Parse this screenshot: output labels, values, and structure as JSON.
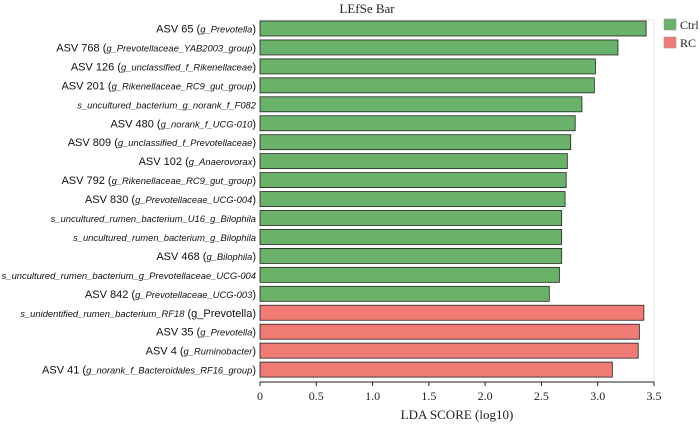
{
  "chart_data": {
    "type": "bar",
    "orientation": "horizontal",
    "title": "LEfSe Bar",
    "xlabel": "LDA SCORE (log10)",
    "ylabel": "",
    "xlim": [
      0,
      3.5
    ],
    "xticks": [
      "0",
      "0.5",
      "1.0",
      "1.5",
      "2.0",
      "2.5",
      "3.0",
      "3.5"
    ],
    "grid": false,
    "legend": {
      "position": "top-right",
      "entries": [
        {
          "name": "Ctrl",
          "color": "#6ab26a"
        },
        {
          "name": "RC",
          "color": "#ef7b74"
        }
      ]
    },
    "bars": [
      {
        "label": {
          "prefix": "ASV 65 (",
          "ital": "g_Prevotella",
          "suffix": ")"
        },
        "value": 3.43,
        "group": "Ctrl"
      },
      {
        "label": {
          "prefix": "ASV 768 (",
          "ital": "g_Prevotellaceae_YAB2003_group",
          "suffix": ")"
        },
        "value": 3.18,
        "group": "Ctrl"
      },
      {
        "label": {
          "prefix": "ASV 126 (",
          "ital": "g_unclassified_f_Rikenellaceae",
          "suffix": ")"
        },
        "value": 2.98,
        "group": "Ctrl"
      },
      {
        "label": {
          "prefix": "ASV 201 (",
          "ital": "g_Rikenellaceae_RC9_gut_group",
          "suffix": ")"
        },
        "value": 2.97,
        "group": "Ctrl"
      },
      {
        "label": {
          "prefix": "",
          "ital": "s_uncultured_bacterium_g_norank_f_F082",
          "suffix": ""
        },
        "value": 2.86,
        "group": "Ctrl"
      },
      {
        "label": {
          "prefix": "ASV 480 (",
          "ital": "g_norank_f_UCG-010",
          "suffix": ")"
        },
        "value": 2.8,
        "group": "Ctrl"
      },
      {
        "label": {
          "prefix": "ASV 809 (",
          "ital": "g_unclassified_f_Prevotellaceae",
          "suffix": ")"
        },
        "value": 2.76,
        "group": "Ctrl"
      },
      {
        "label": {
          "prefix": "ASV 102 (",
          "ital": "g_Anaerovorax",
          "suffix": ")"
        },
        "value": 2.73,
        "group": "Ctrl"
      },
      {
        "label": {
          "prefix": "ASV 792 (",
          "ital": "g_Rikenellaceae_RC9_gut_group",
          "suffix": ")"
        },
        "value": 2.72,
        "group": "Ctrl"
      },
      {
        "label": {
          "prefix": "ASV 830 (",
          "ital": "g_Prevotellaceae_UCG-004",
          "suffix": ")"
        },
        "value": 2.71,
        "group": "Ctrl"
      },
      {
        "label": {
          "prefix": "",
          "ital": "s_uncultured_rumen_bacterium_U16_g_Bilophila",
          "suffix": ""
        },
        "value": 2.68,
        "group": "Ctrl"
      },
      {
        "label": {
          "prefix": "",
          "ital": "s_uncultured_rumen_bacterium_g_Bilophila",
          "suffix": ""
        },
        "value": 2.68,
        "group": "Ctrl"
      },
      {
        "label": {
          "prefix": "ASV 468 (",
          "ital": "g_Bilophila",
          "suffix": ")"
        },
        "value": 2.68,
        "group": "Ctrl"
      },
      {
        "label": {
          "prefix": "",
          "ital": "s_uncultured_rumen_bacterium_g_Prevotellaceae_UCG-004",
          "suffix": ""
        },
        "value": 2.66,
        "group": "Ctrl"
      },
      {
        "label": {
          "prefix": "ASV 842 (",
          "ital": "g_Prevotellaceae_UCG-003",
          "suffix": ")"
        },
        "value": 2.57,
        "group": "Ctrl"
      },
      {
        "label": {
          "prefix": "",
          "ital": "s_unidentified_rumen_bacterium_RF18",
          "suffix": " (g_Prevotella)"
        },
        "value": 3.41,
        "group": "RC"
      },
      {
        "label": {
          "prefix": "ASV 35 (",
          "ital": "g_Prevotella",
          "suffix": ")"
        },
        "value": 3.37,
        "group": "RC"
      },
      {
        "label": {
          "prefix": "ASV 4 (",
          "ital": "g_Ruminobacter",
          "suffix": ")"
        },
        "value": 3.36,
        "group": "RC"
      },
      {
        "label": {
          "prefix": "ASV 41 (",
          "ital": "g_norank_f_Bacteroidales_RF16_group",
          "suffix": ")"
        },
        "value": 3.13,
        "group": "RC"
      }
    ]
  }
}
